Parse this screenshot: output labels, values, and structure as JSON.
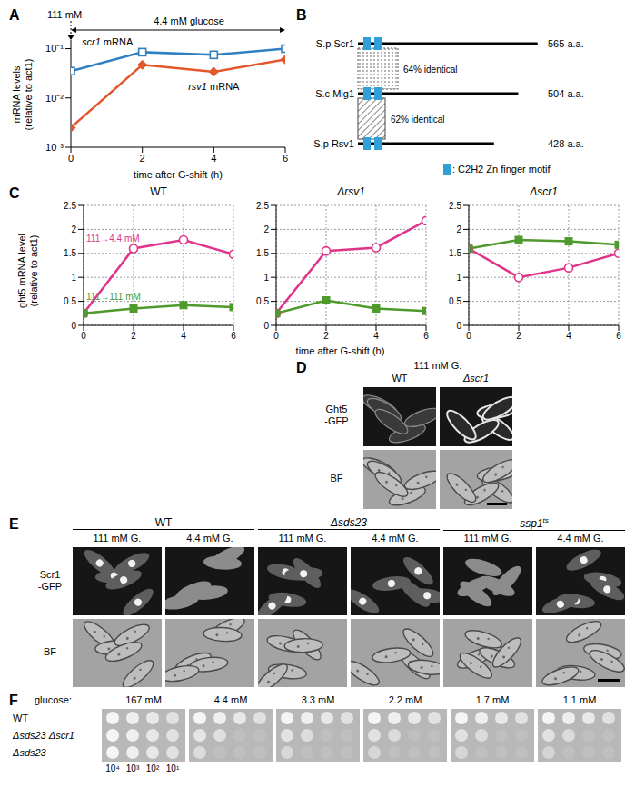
{
  "panel_labels": [
    "A",
    "B",
    "C",
    "D",
    "E",
    "F"
  ],
  "chart_data": [
    {
      "type": "line",
      "log": "y",
      "grid": false,
      "x_label": "time after G-shift (h)",
      "y_label": [
        "mRNA levels",
        "(relative to act1)"
      ],
      "annotations": [
        "111 mM",
        "4.4 mM glucose"
      ],
      "x": [
        0,
        2,
        4,
        6
      ],
      "xlim": [
        0,
        6
      ],
      "xticks": [
        0,
        2,
        4,
        6
      ],
      "ylim": [
        0.001,
        0.15
      ],
      "yticks": [
        {
          "value": 0.001,
          "label": "10⁻³"
        },
        {
          "value": 0.01,
          "label": "10⁻²"
        },
        {
          "value": 0.1,
          "label": "10⁻¹"
        }
      ],
      "series": [
        {
          "name": "scr1 mRNA",
          "color": "#2f7fc1",
          "marker": "open-square",
          "values": [
            0.035,
            0.085,
            0.075,
            0.1
          ]
        },
        {
          "name": "rsv1 mRNA",
          "color": "#e2572b",
          "marker": "diamond",
          "values": [
            0.0025,
            0.047,
            0.034,
            0.06
          ]
        }
      ]
    },
    {
      "type": "line",
      "title": "WT",
      "grid": true,
      "y_label": [
        "ght5 mRNA level",
        "(relative to act1)"
      ],
      "x": [
        0,
        2,
        4,
        6
      ],
      "xlim": [
        0,
        6
      ],
      "xticks": [
        0,
        2,
        4,
        6
      ],
      "ylim": [
        0,
        2.5
      ],
      "yticks": [
        0,
        0.5,
        1,
        1.5,
        2,
        2.5
      ],
      "series": [
        {
          "name": "111→4.4 mM",
          "color": "#e0338a",
          "marker": "open-circle",
          "values": [
            0.25,
            1.6,
            1.78,
            1.48
          ]
        },
        {
          "name": "111→111 mM",
          "color": "#4f9a2c",
          "marker": "square",
          "values": [
            0.25,
            0.35,
            0.42,
            0.38
          ]
        }
      ]
    },
    {
      "type": "line",
      "title": "Δrsv1",
      "grid": true,
      "x_label": "time after G-shift (h)",
      "x": [
        0,
        2,
        4,
        6
      ],
      "xlim": [
        0,
        6
      ],
      "xticks": [
        0,
        2,
        4,
        6
      ],
      "ylim": [
        0,
        2.5
      ],
      "yticks": [
        0,
        0.5,
        1,
        1.5,
        2,
        2.5
      ],
      "series": [
        {
          "color": "#e0338a",
          "marker": "open-circle",
          "values": [
            0.25,
            1.55,
            1.62,
            2.18
          ]
        },
        {
          "color": "#4f9a2c",
          "marker": "square",
          "values": [
            0.25,
            0.52,
            0.35,
            0.3
          ]
        }
      ]
    },
    {
      "type": "line",
      "title": "Δscr1",
      "grid": true,
      "x": [
        0,
        2,
        4,
        6
      ],
      "xlim": [
        0,
        6
      ],
      "xticks": [
        0,
        2,
        4,
        6
      ],
      "ylim": [
        0,
        2.5
      ],
      "yticks": [
        0,
        0.5,
        1,
        1.5,
        2,
        2.5
      ],
      "series": [
        {
          "color": "#e0338a",
          "marker": "open-circle",
          "values": [
            1.6,
            1.0,
            1.2,
            1.5
          ]
        },
        {
          "color": "#4f9a2c",
          "marker": "square",
          "values": [
            1.6,
            1.78,
            1.75,
            1.68
          ]
        }
      ]
    }
  ],
  "diagram": {
    "proteins": [
      {
        "name": "S.p Scr1",
        "length": 565,
        "length_label": "565 a.a."
      },
      {
        "name": "S.c Mig1",
        "length": 504,
        "length_label": "504 a.a."
      },
      {
        "name": "S.p Rsv1",
        "length": 428,
        "length_label": "428 a.a."
      }
    ],
    "identity": [
      "64% identical",
      "62% identical"
    ],
    "motif_legend": ": C2H2 Zn finger motif"
  },
  "images": {
    "D": {
      "header": "111 mM G.",
      "columns": [
        "WT",
        "Δscr1"
      ],
      "rows": [
        [
          "Ght5",
          "-GFP"
        ],
        [
          "BF"
        ]
      ]
    },
    "E": {
      "groups": [
        {
          "label": "WT",
          "conditions": [
            "111 mM G.",
            "4.4 mM G."
          ]
        },
        {
          "label": "Δsds23",
          "conditions": [
            "111 mM G.",
            "4.4 mM G."
          ]
        },
        {
          "label": "ssp1",
          "superscript": "ts",
          "conditions": [
            "111 mM G.",
            "4.4 mM G."
          ]
        }
      ],
      "rows": [
        [
          "Scr1",
          "-GFP"
        ],
        [
          "BF"
        ]
      ]
    },
    "F": {
      "prefix": "glucose:",
      "conditions": [
        "167 mM",
        "4.4 mM",
        "3.3 mM",
        "2.2 mM",
        "1.7 mM",
        "1.1 mM"
      ],
      "strains": [
        "WT",
        "Δsds23 Δscr1",
        "Δsds23"
      ],
      "dilutions": [
        "10⁴",
        "10³",
        "10²",
        "10¹"
      ]
    }
  }
}
